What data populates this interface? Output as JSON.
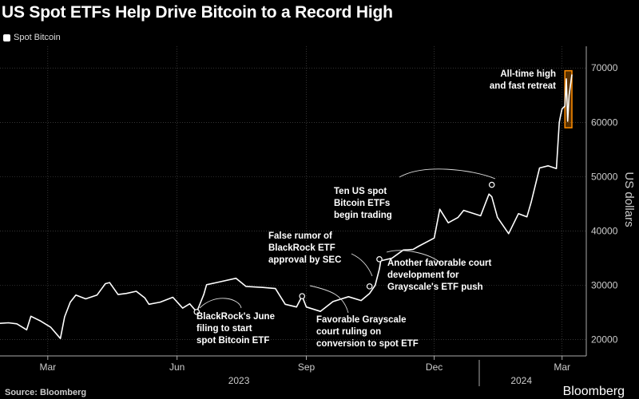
{
  "title": "US Spot ETFs Help Drive Bitcoin to a Record High",
  "legend": "Spot Bitcoin",
  "source": "Source: Bloomberg",
  "brand": "Bloomberg",
  "chart_data": {
    "type": "line",
    "title": "US Spot ETFs Help Drive Bitcoin to a Record High",
    "ylabel": "US dollars",
    "ylim": [
      17000,
      74000
    ],
    "yticks": [
      20000,
      30000,
      40000,
      50000,
      60000,
      70000
    ],
    "ytick_labels": [
      "20000",
      "30000",
      "40000",
      "50000",
      "60000",
      "70000"
    ],
    "xlim": [
      "2023-01-26",
      "2024-03-08"
    ],
    "xticks": [
      {
        "date": "2023-03-01",
        "label": "Mar"
      },
      {
        "date": "2023-06-01",
        "label": "Jun"
      },
      {
        "date": "2023-09-01",
        "label": "Sep"
      },
      {
        "date": "2023-12-01",
        "label": "Dec"
      },
      {
        "date": "2024-03-01",
        "label": "Mar"
      }
    ],
    "years": [
      {
        "date": "2023-07-15",
        "label": "2023"
      },
      {
        "date": "2024-02-01",
        "label": "2024"
      }
    ],
    "grid": true,
    "legend_position": "top-left",
    "series": [
      {
        "name": "Spot Bitcoin",
        "color": "#ffffff",
        "points": [
          [
            "2023-01-26",
            23000
          ],
          [
            "2023-02-01",
            23100
          ],
          [
            "2023-02-07",
            22900
          ],
          [
            "2023-02-14",
            21800
          ],
          [
            "2023-02-17",
            24300
          ],
          [
            "2023-02-24",
            23400
          ],
          [
            "2023-03-03",
            22300
          ],
          [
            "2023-03-10",
            20200
          ],
          [
            "2023-03-13",
            24200
          ],
          [
            "2023-03-17",
            26900
          ],
          [
            "2023-03-21",
            28200
          ],
          [
            "2023-03-28",
            27500
          ],
          [
            "2023-04-05",
            28200
          ],
          [
            "2023-04-11",
            30300
          ],
          [
            "2023-04-14",
            30500
          ],
          [
            "2023-04-20",
            28300
          ],
          [
            "2023-04-26",
            28500
          ],
          [
            "2023-05-03",
            28900
          ],
          [
            "2023-05-09",
            27700
          ],
          [
            "2023-05-12",
            26500
          ],
          [
            "2023-05-20",
            26900
          ],
          [
            "2023-05-29",
            27800
          ],
          [
            "2023-06-05",
            25800
          ],
          [
            "2023-06-10",
            26600
          ],
          [
            "2023-06-15",
            25100
          ],
          [
            "2023-06-20",
            28300
          ],
          [
            "2023-06-22",
            30100
          ],
          [
            "2023-07-01",
            30600
          ],
          [
            "2023-07-13",
            31300
          ],
          [
            "2023-07-20",
            29800
          ],
          [
            "2023-08-01",
            29600
          ],
          [
            "2023-08-10",
            29400
          ],
          [
            "2023-08-17",
            26500
          ],
          [
            "2023-08-25",
            26000
          ],
          [
            "2023-08-29",
            28000
          ],
          [
            "2023-09-01",
            26000
          ],
          [
            "2023-09-11",
            25200
          ],
          [
            "2023-09-20",
            27000
          ],
          [
            "2023-10-01",
            27900
          ],
          [
            "2023-10-10",
            27200
          ],
          [
            "2023-10-16",
            28500
          ],
          [
            "2023-10-20",
            30000
          ],
          [
            "2023-10-23",
            33000
          ],
          [
            "2023-10-24",
            34500
          ],
          [
            "2023-11-01",
            35000
          ],
          [
            "2023-11-09",
            36500
          ],
          [
            "2023-11-16",
            36600
          ],
          [
            "2023-11-20",
            37200
          ],
          [
            "2023-12-01",
            38700
          ],
          [
            "2023-12-05",
            44000
          ],
          [
            "2023-12-11",
            41500
          ],
          [
            "2023-12-18",
            42500
          ],
          [
            "2023-12-22",
            43800
          ],
          [
            "2024-01-03",
            42800
          ],
          [
            "2024-01-09",
            46800
          ],
          [
            "2024-01-11",
            46300
          ],
          [
            "2024-01-15",
            42500
          ],
          [
            "2024-01-23",
            39500
          ],
          [
            "2024-01-30",
            43200
          ],
          [
            "2024-02-05",
            42600
          ],
          [
            "2024-02-08",
            45300
          ],
          [
            "2024-02-14",
            51600
          ],
          [
            "2024-02-20",
            52000
          ],
          [
            "2024-02-26",
            51500
          ],
          [
            "2024-02-28",
            60000
          ],
          [
            "2024-02-29",
            61300
          ],
          [
            "2024-03-01",
            62500
          ],
          [
            "2024-03-03",
            63000
          ],
          [
            "2024-03-04",
            68000
          ],
          [
            "2024-03-05",
            60200
          ],
          [
            "2024-03-06",
            65000
          ],
          [
            "2024-03-08",
            68800
          ]
        ]
      }
    ],
    "highlight": {
      "x": [
        "2024-03-03",
        "2024-03-08"
      ],
      "y": [
        59000,
        69500
      ],
      "color": "#ff8c00"
    },
    "annotations": [
      {
        "id": "blackrock-june",
        "lines": [
          "BlackRock's June",
          "filing to start",
          "spot Bitcoin ETF"
        ],
        "marker": [
          "2023-06-15",
          25100
        ]
      },
      {
        "id": "grayscale-ruling",
        "lines": [
          "Favorable Grayscale",
          "court ruling on",
          "conversion to spot ETF"
        ],
        "marker": [
          "2023-08-29",
          28000
        ]
      },
      {
        "id": "false-rumor",
        "lines": [
          "False rumor of",
          "BlackRock ETF",
          "approval by SEC"
        ],
        "marker": [
          "2023-10-16",
          29800
        ]
      },
      {
        "id": "another-court",
        "lines": [
          "Another favorable court",
          "development for",
          "Grayscale's ETF push"
        ],
        "marker": [
          "2023-10-23",
          34800
        ]
      },
      {
        "id": "ten-etfs",
        "lines": [
          "Ten US spot",
          "Bitcoin ETFs",
          "begin trading"
        ],
        "marker": [
          "2024-01-11",
          48500
        ]
      },
      {
        "id": "ath",
        "lines": [
          "All-time high",
          "and fast retreat"
        ],
        "marker": null
      }
    ]
  }
}
